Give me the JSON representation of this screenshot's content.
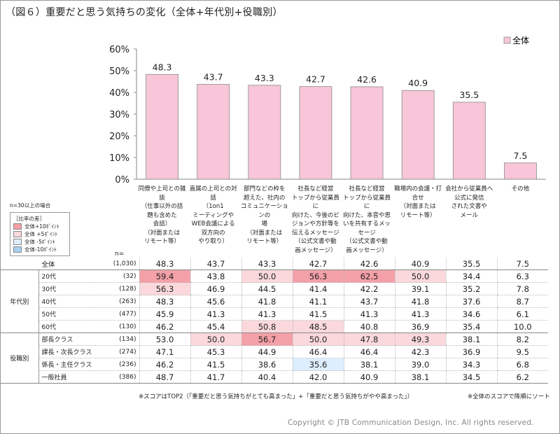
{
  "title": "（図６）重要だと思う気持ちの変化（全体+年代別+役職別）",
  "colors": {
    "bar": "#f8c6d8",
    "bar_stroke": "#8a8a8a",
    "plus10": "#f4a0a8",
    "plus5": "#fad8dc",
    "minus5": "#ddeeff",
    "minus10": "#a8d0f0"
  },
  "chart_data": {
    "type": "bar",
    "title": "",
    "xlabel": "",
    "ylabel": "",
    "ylim": [
      0,
      60
    ],
    "yticks": [
      "0%",
      "10%",
      "20%",
      "30%",
      "40%",
      "50%",
      "60%"
    ],
    "grid": false,
    "legend_position": "top-right",
    "categories": [
      "同僚や上司との雑\n談\n（仕事以外の話\n題も含めた\n会話）\n（対面または\nリモート等）",
      "直属の上司との対\n話\n（1on1\nミーティングや\nWEB会議による\n双方向の\nやり取り）",
      "部門などの枠を\n超えた、社内の\nコミュニケーションの\n場\n（対面または\nリモート等）",
      "社長など経営\nトップから従業員に\n向けた、今後のビ\nジョンや方針等を\n伝えるメッセージ\n（公式文書や動\n画メッセージ）",
      "社長など経営\nトップから従業員に\n向けた、本音や思\nいを共有するメッ\nセージ\n（公式文書や動\n画メッセージ）",
      "職場内の会議・打\n合せ\n（対面または\nリモート等）",
      "会社から従業員へ\n公式に発信\nされた文書や\nメール",
      "その他"
    ],
    "series": [
      {
        "name": "全体",
        "values": [
          48.3,
          43.7,
          43.3,
          42.7,
          42.6,
          40.9,
          35.5,
          7.5
        ]
      }
    ]
  },
  "legend_key": {
    "note": "n=30以上の場合",
    "title": "［比率の差］",
    "items": [
      {
        "label": "全体+10ﾎﾟｲﾝﾄ",
        "color": "plus10"
      },
      {
        "label": "全体 +5ﾎﾟｲﾝﾄ",
        "color": "plus5"
      },
      {
        "label": "全体 -5ﾎﾟｲﾝﾄ",
        "color": "minus5"
      },
      {
        "label": "全体-10ﾎﾟｲﾝﾄ",
        "color": "minus10"
      }
    ]
  },
  "table": {
    "n_label": "n=",
    "total": {
      "label": "全体",
      "n": "(1,030)",
      "values": [
        "48.3",
        "43.7",
        "43.3",
        "42.7",
        "42.6",
        "40.9",
        "35.5",
        "7.5"
      ],
      "highlights": [
        "",
        "",
        "",
        "",
        "",
        "",
        "",
        ""
      ]
    },
    "groups": [
      {
        "label": "年代別",
        "rows": [
          {
            "label": "20代",
            "n": "(32)",
            "values": [
              "59.4",
              "43.8",
              "50.0",
              "56.3",
              "62.5",
              "50.0",
              "34.4",
              "6.3"
            ],
            "highlights": [
              "plus10",
              "",
              "plus5",
              "plus10",
              "plus10",
              "plus5",
              "",
              ""
            ]
          },
          {
            "label": "30代",
            "n": "(128)",
            "values": [
              "56.3",
              "46.9",
              "44.5",
              "41.4",
              "42.2",
              "39.1",
              "35.2",
              "7.8"
            ],
            "highlights": [
              "plus5",
              "",
              "",
              "",
              "",
              "",
              "",
              ""
            ]
          },
          {
            "label": "40代",
            "n": "(263)",
            "values": [
              "48.3",
              "45.6",
              "41.8",
              "41.1",
              "43.7",
              "41.8",
              "37.6",
              "8.7"
            ],
            "highlights": [
              "",
              "",
              "",
              "",
              "",
              "",
              "",
              ""
            ]
          },
          {
            "label": "50代",
            "n": "(477)",
            "values": [
              "45.9",
              "41.3",
              "41.3",
              "41.5",
              "41.3",
              "41.3",
              "34.6",
              "6.1"
            ],
            "highlights": [
              "",
              "",
              "",
              "",
              "",
              "",
              "",
              ""
            ]
          },
          {
            "label": "60代",
            "n": "(130)",
            "values": [
              "46.2",
              "45.4",
              "50.8",
              "48.5",
              "40.8",
              "36.9",
              "35.4",
              "10.0"
            ],
            "highlights": [
              "",
              "",
              "plus5",
              "plus5",
              "",
              "",
              "",
              ""
            ]
          }
        ]
      },
      {
        "label": "役職別",
        "rows": [
          {
            "label": "部長クラス",
            "n": "(134)",
            "values": [
              "53.0",
              "50.0",
              "56.7",
              "50.0",
              "47.8",
              "49.3",
              "38.1",
              "8.2"
            ],
            "highlights": [
              "",
              "plus5",
              "plus10",
              "plus5",
              "plus5",
              "plus5",
              "",
              ""
            ]
          },
          {
            "label": "課長・次長クラス",
            "n": "(274)",
            "values": [
              "47.1",
              "45.3",
              "44.9",
              "46.4",
              "46.4",
              "42.3",
              "36.9",
              "9.5"
            ],
            "highlights": [
              "",
              "",
              "",
              "",
              "",
              "",
              "",
              ""
            ]
          },
          {
            "label": "係長・主任クラス",
            "n": "(236)",
            "values": [
              "46.2",
              "41.5",
              "38.6",
              "35.6",
              "38.1",
              "39.0",
              "34.3",
              "6.8"
            ],
            "highlights": [
              "",
              "",
              "",
              "minus5",
              "",
              "",
              "",
              ""
            ]
          },
          {
            "label": "一般社員",
            "n": "(386)",
            "values": [
              "48.7",
              "41.7",
              "40.4",
              "42.0",
              "40.9",
              "38.1",
              "34.5",
              "6.2"
            ],
            "highlights": [
              "",
              "",
              "",
              "",
              "",
              "",
              "",
              ""
            ]
          }
        ]
      }
    ]
  },
  "notes": {
    "left": "※スコアはTOP2（「重要だと思う気持ちがとても高まった」+「重要だと思う気持ちがやや高まった」）",
    "right": "※全体のスコアで降順にソート"
  },
  "copyright": "Copyright © JTB Communication Design, Inc. All rights reserved."
}
